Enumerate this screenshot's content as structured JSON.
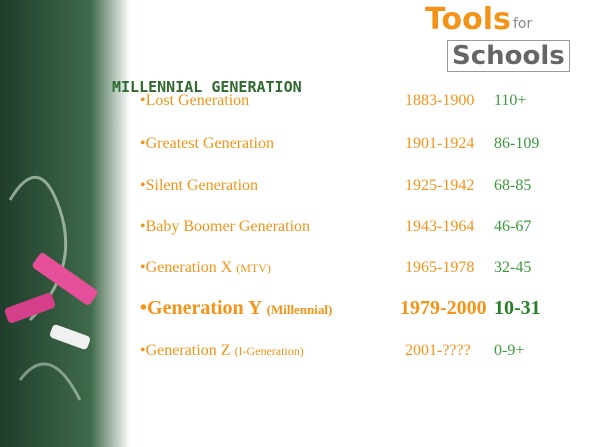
{
  "title": "MILLENNIAL GENERATION",
  "logo": {
    "top": "Tools",
    "small": "for",
    "bottom": "Schools"
  },
  "rows": [
    {
      "name": "Lost Generation",
      "years": "1883-1900",
      "ages": "110+"
    },
    {
      "name": "Greatest Generation",
      "years": "1901-1924",
      "ages": "86-109"
    },
    {
      "name": "Silent Generation",
      "years": "1925-1942",
      "ages": "68-85"
    },
    {
      "name": "Baby Boomer Generation",
      "years": "1943-1964",
      "ages": "46-67"
    },
    {
      "name": "Generation X",
      "note": "(MTV)",
      "years": "1965-1978",
      "ages": "32-45"
    },
    {
      "name": "Generation Y",
      "note": "(Millennial)",
      "years": "1979-2000",
      "ages": "10-31"
    },
    {
      "name": "Generation Z",
      "note": "(I-Generation)",
      "years": "2001-????",
      "ages": "0-9+"
    }
  ]
}
